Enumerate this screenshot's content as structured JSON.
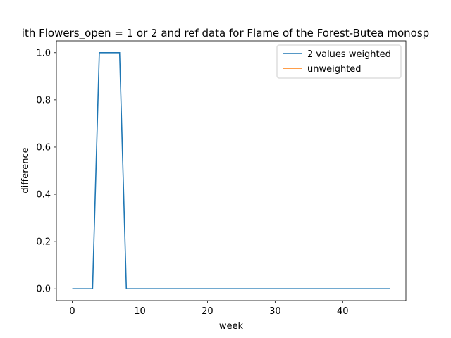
{
  "chart_data": {
    "type": "line",
    "title": "ith Flowers_open = 1 or 2 and ref data for Flame of the Forest-Butea monosp",
    "xlabel": "week",
    "ylabel": "difference",
    "xlim": [
      -2.35,
      49.35
    ],
    "ylim": [
      -0.05,
      1.05
    ],
    "xticks": [
      0,
      10,
      20,
      30,
      40
    ],
    "yticks": [
      0.0,
      0.2,
      0.4,
      0.6,
      0.8,
      1.0
    ],
    "xtick_labels": [
      "0",
      "10",
      "20",
      "30",
      "40"
    ],
    "ytick_labels": [
      "0.0",
      "0.2",
      "0.4",
      "0.6",
      "0.8",
      "1.0"
    ],
    "grid": false,
    "legend_position": "top-right",
    "series": [
      {
        "name": "2 values weighted",
        "color": "#1f77b4",
        "x": [
          0,
          1,
          2,
          3,
          4,
          5,
          6,
          7,
          8,
          9,
          10,
          11,
          12,
          13,
          14,
          15,
          16,
          17,
          18,
          19,
          20,
          21,
          22,
          23,
          24,
          25,
          26,
          27,
          28,
          29,
          30,
          31,
          32,
          33,
          34,
          35,
          36,
          37,
          38,
          39,
          40,
          41,
          42,
          43,
          44,
          45,
          46,
          47
        ],
        "y": [
          0,
          0,
          0,
          0,
          1,
          1,
          1,
          1,
          0,
          0,
          0,
          0,
          0,
          0,
          0,
          0,
          0,
          0,
          0,
          0,
          0,
          0,
          0,
          0,
          0,
          0,
          0,
          0,
          0,
          0,
          0,
          0,
          0,
          0,
          0,
          0,
          0,
          0,
          0,
          0,
          0,
          0,
          0,
          0,
          0,
          0,
          0,
          0
        ]
      },
      {
        "name": "unweighted",
        "color": "#ff7f0e",
        "x": [],
        "y": []
      }
    ]
  }
}
